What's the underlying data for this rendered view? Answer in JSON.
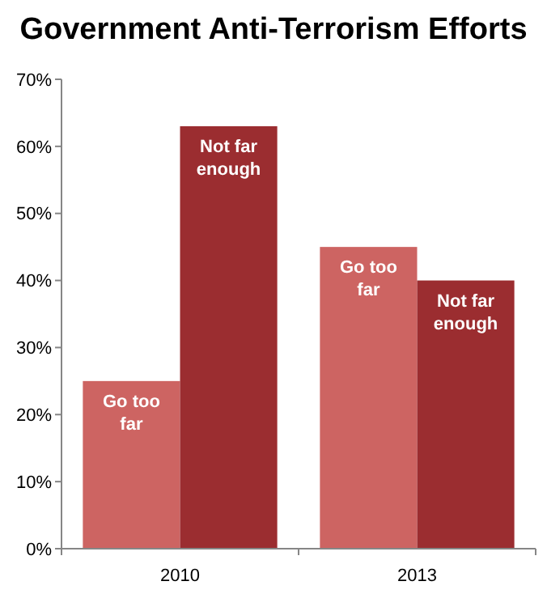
{
  "chart_data": {
    "type": "bar",
    "title": "Government Anti-Terrorism Efforts",
    "categories": [
      "2010",
      "2013"
    ],
    "series": [
      {
        "name": "Go too far",
        "color": "#cd6462",
        "values": [
          25,
          45
        ]
      },
      {
        "name": "Not far enough",
        "color": "#9b2d30",
        "values": [
          63,
          40
        ]
      }
    ],
    "ylim": [
      0,
      70
    ],
    "yticks": [
      {
        "value": 0,
        "label": "0%"
      },
      {
        "value": 10,
        "label": "10%"
      },
      {
        "value": 20,
        "label": "20%"
      },
      {
        "value": 30,
        "label": "30%"
      },
      {
        "value": 40,
        "label": "40%"
      },
      {
        "value": 50,
        "label": "50%"
      },
      {
        "value": 60,
        "label": "60%"
      },
      {
        "value": 70,
        "label": "70%"
      }
    ],
    "grid": false,
    "legend": false
  }
}
